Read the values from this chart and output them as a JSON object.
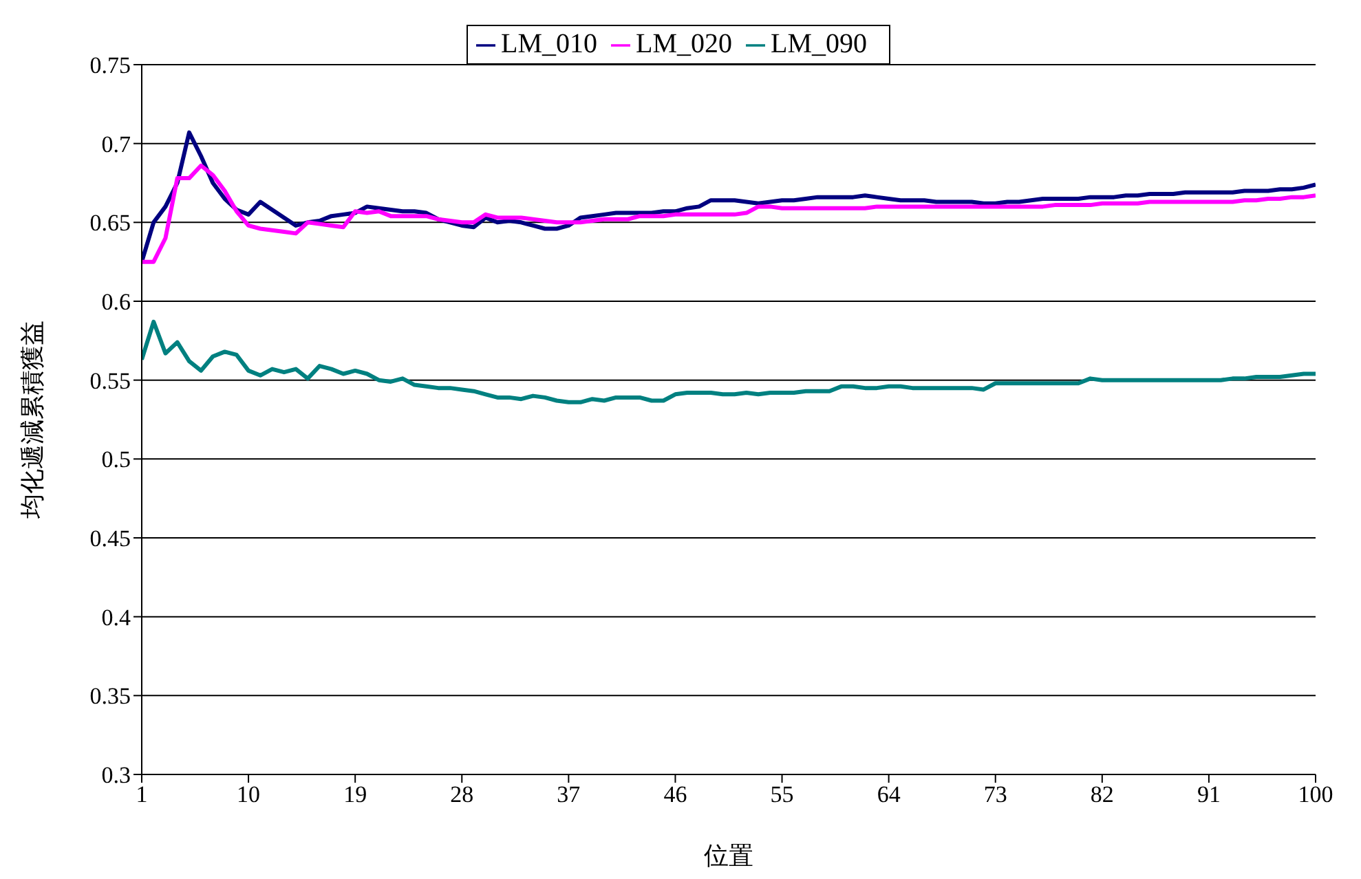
{
  "chart_data": {
    "type": "line",
    "xlabel": "位置",
    "ylabel": "均化遞減累積獲益",
    "x": [
      1,
      2,
      3,
      4,
      5,
      6,
      7,
      8,
      9,
      10,
      11,
      12,
      13,
      14,
      15,
      16,
      17,
      18,
      19,
      20,
      21,
      22,
      23,
      24,
      25,
      26,
      27,
      28,
      29,
      30,
      31,
      32,
      33,
      34,
      35,
      36,
      37,
      38,
      39,
      40,
      41,
      42,
      43,
      44,
      45,
      46,
      47,
      48,
      49,
      50,
      51,
      52,
      53,
      54,
      55,
      56,
      57,
      58,
      59,
      60,
      61,
      62,
      63,
      64,
      65,
      66,
      67,
      68,
      69,
      70,
      71,
      72,
      73,
      74,
      75,
      76,
      77,
      78,
      79,
      80,
      81,
      82,
      83,
      84,
      85,
      86,
      87,
      88,
      89,
      90,
      91,
      92,
      93,
      94,
      95,
      96,
      97,
      98,
      99,
      100
    ],
    "series": [
      {
        "name": "LM_010",
        "color": "#000080",
        "values": [
          0.625,
          0.65,
          0.66,
          0.675,
          0.707,
          0.692,
          0.675,
          0.665,
          0.658,
          0.655,
          0.663,
          0.658,
          0.653,
          0.648,
          0.65,
          0.651,
          0.654,
          0.655,
          0.656,
          0.66,
          0.659,
          0.658,
          0.657,
          0.657,
          0.656,
          0.652,
          0.65,
          0.648,
          0.647,
          0.653,
          0.65,
          0.651,
          0.65,
          0.648,
          0.646,
          0.646,
          0.648,
          0.653,
          0.654,
          0.655,
          0.656,
          0.656,
          0.656,
          0.656,
          0.657,
          0.657,
          0.659,
          0.66,
          0.664,
          0.664,
          0.664,
          0.663,
          0.662,
          0.663,
          0.664,
          0.664,
          0.665,
          0.666,
          0.666,
          0.666,
          0.666,
          0.667,
          0.666,
          0.665,
          0.664,
          0.664,
          0.664,
          0.663,
          0.663,
          0.663,
          0.663,
          0.662,
          0.662,
          0.663,
          0.663,
          0.664,
          0.665,
          0.665,
          0.665,
          0.665,
          0.666,
          0.666,
          0.666,
          0.667,
          0.667,
          0.668,
          0.668,
          0.668,
          0.669,
          0.669,
          0.669,
          0.669,
          0.669,
          0.67,
          0.67,
          0.67,
          0.671,
          0.671,
          0.672,
          0.674
        ]
      },
      {
        "name": "LM_020",
        "color": "#ff00ff",
        "values": [
          0.625,
          0.625,
          0.64,
          0.678,
          0.678,
          0.686,
          0.68,
          0.67,
          0.657,
          0.648,
          0.646,
          0.645,
          0.644,
          0.643,
          0.65,
          0.649,
          0.648,
          0.647,
          0.657,
          0.656,
          0.657,
          0.654,
          0.654,
          0.654,
          0.654,
          0.652,
          0.651,
          0.65,
          0.65,
          0.655,
          0.653,
          0.653,
          0.653,
          0.652,
          0.651,
          0.65,
          0.65,
          0.65,
          0.651,
          0.652,
          0.652,
          0.652,
          0.654,
          0.654,
          0.654,
          0.655,
          0.655,
          0.655,
          0.655,
          0.655,
          0.655,
          0.656,
          0.66,
          0.66,
          0.659,
          0.659,
          0.659,
          0.659,
          0.659,
          0.659,
          0.659,
          0.659,
          0.66,
          0.66,
          0.66,
          0.66,
          0.66,
          0.66,
          0.66,
          0.66,
          0.66,
          0.66,
          0.66,
          0.66,
          0.66,
          0.66,
          0.66,
          0.661,
          0.661,
          0.661,
          0.661,
          0.662,
          0.662,
          0.662,
          0.662,
          0.663,
          0.663,
          0.663,
          0.663,
          0.663,
          0.663,
          0.663,
          0.663,
          0.664,
          0.664,
          0.665,
          0.665,
          0.666,
          0.666,
          0.667
        ]
      },
      {
        "name": "LM_090",
        "color": "#008080",
        "values": [
          0.563,
          0.587,
          0.567,
          0.574,
          0.562,
          0.556,
          0.565,
          0.568,
          0.566,
          0.556,
          0.553,
          0.557,
          0.555,
          0.557,
          0.551,
          0.559,
          0.557,
          0.554,
          0.556,
          0.554,
          0.55,
          0.549,
          0.551,
          0.547,
          0.546,
          0.545,
          0.545,
          0.544,
          0.543,
          0.541,
          0.539,
          0.539,
          0.538,
          0.54,
          0.539,
          0.537,
          0.536,
          0.536,
          0.538,
          0.537,
          0.539,
          0.539,
          0.539,
          0.537,
          0.537,
          0.541,
          0.542,
          0.542,
          0.542,
          0.541,
          0.541,
          0.542,
          0.541,
          0.542,
          0.542,
          0.542,
          0.543,
          0.543,
          0.543,
          0.546,
          0.546,
          0.545,
          0.545,
          0.546,
          0.546,
          0.545,
          0.545,
          0.545,
          0.545,
          0.545,
          0.545,
          0.544,
          0.548,
          0.548,
          0.548,
          0.548,
          0.548,
          0.548,
          0.548,
          0.548,
          0.551,
          0.55,
          0.55,
          0.55,
          0.55,
          0.55,
          0.55,
          0.55,
          0.55,
          0.55,
          0.55,
          0.55,
          0.551,
          0.551,
          0.552,
          0.552,
          0.552,
          0.553,
          0.554,
          0.554
        ]
      }
    ],
    "xlim": [
      1,
      100
    ],
    "xticks": [
      1,
      10,
      19,
      28,
      37,
      46,
      55,
      64,
      73,
      82,
      91,
      100
    ],
    "ylim": [
      0.3,
      0.75
    ],
    "yticks": [
      0.3,
      0.35,
      0.4,
      0.45,
      0.5,
      0.55,
      0.6,
      0.65,
      0.7,
      0.75
    ],
    "grid": "y",
    "legend": "top",
    "marker": "none",
    "line_style": "solid"
  }
}
